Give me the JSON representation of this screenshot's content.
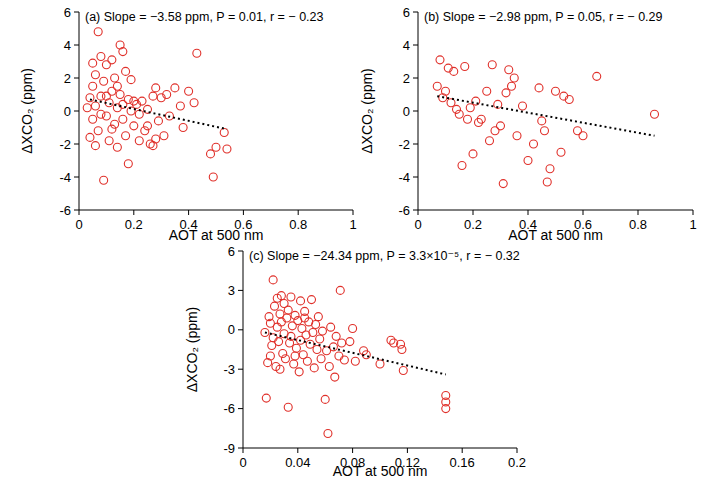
{
  "chart_data": [
    {
      "type": "scatter",
      "annotation": "(a) Slope = −3.58 ppm, P = 0.01, r = − 0.23",
      "x_label": "AOT at 500 nm",
      "y_label": "ΔXCO₂ (ppm)",
      "xlim": [
        0,
        1
      ],
      "xticks": [
        0,
        0.2,
        0.4,
        0.6,
        0.8,
        1
      ],
      "ylim": [
        -6,
        6
      ],
      "yticks": [
        -6,
        -4,
        -2,
        0,
        2,
        4,
        6
      ],
      "series": [
        {
          "type": "scatter",
          "marker": "open_circle",
          "color": "#e0302a",
          "x": [
            0.04,
            0.05,
            0.05,
            0.06,
            0.06,
            0.07,
            0.07,
            0.08,
            0.08,
            0.09,
            0.09,
            0.1,
            0.1,
            0.11,
            0.11,
            0.12,
            0.12,
            0.13,
            0.13,
            0.14,
            0.14,
            0.15,
            0.15,
            0.16,
            0.16,
            0.17,
            0.17,
            0.18,
            0.18,
            0.19,
            0.19,
            0.2,
            0.21,
            0.22,
            0.23,
            0.24,
            0.25,
            0.26,
            0.27,
            0.27,
            0.28,
            0.29,
            0.3,
            0.31,
            0.32,
            0.33,
            0.35,
            0.37,
            0.38,
            0.4,
            0.42,
            0.43,
            0.48,
            0.49,
            0.5,
            0.53,
            0.54,
            0.03,
            0.04,
            0.06,
            0.08,
            0.1,
            0.12,
            0.14,
            0.16,
            0.2,
            0.22,
            0.25,
            0.28,
            0.05
          ],
          "values": [
            0.8,
            1.5,
            -0.5,
            2.2,
            0.3,
            4.8,
            -1.2,
            3.3,
            0.9,
            -4.2,
            1.8,
            2.8,
            -0.3,
            0.5,
            -1.8,
            3.1,
            1.2,
            -0.8,
            2.0,
            0.2,
            -2.2,
            4.0,
            1.0,
            3.6,
            -0.5,
            2.4,
            -1.5,
            0.7,
            -3.2,
            1.9,
            0.0,
            -0.9,
            0.4,
            -1.8,
            0.6,
            -1.2,
            0.1,
            -2.0,
            -2.1,
            0.9,
            -1.7,
            -0.6,
            0.8,
            -1.5,
            1.0,
            -0.3,
            1.4,
            0.3,
            -1.0,
            1.2,
            0.5,
            3.5,
            -2.6,
            -4.0,
            -2.2,
            -1.3,
            -2.3,
            0.2,
            -1.6,
            -2.1,
            -0.2,
            0.9,
            -1.1,
            1.5,
            0.4,
            0.6,
            -0.2,
            -0.9,
            1.4,
            2.9
          ]
        },
        {
          "type": "line",
          "line_style": "dotted",
          "color": "#000000",
          "x": [
            0.04,
            0.54
          ],
          "values": [
            0.7,
            -1.1
          ]
        }
      ]
    },
    {
      "type": "scatter",
      "annotation": "(b) Slope = −2.98 ppm, P = 0.05, r = − 0.29",
      "x_label": "AOT at 500 nm",
      "y_label": "ΔXCO₂ (ppm)",
      "xlim": [
        0,
        1
      ],
      "xticks": [
        0,
        0.2,
        0.4,
        0.6,
        0.8,
        1
      ],
      "ylim": [
        -6,
        6
      ],
      "yticks": [
        -6,
        -4,
        -2,
        0,
        2,
        4,
        6
      ],
      "series": [
        {
          "type": "scatter",
          "marker": "open_circle",
          "color": "#e0302a",
          "x": [
            0.07,
            0.08,
            0.09,
            0.1,
            0.11,
            0.12,
            0.13,
            0.14,
            0.15,
            0.16,
            0.17,
            0.18,
            0.19,
            0.2,
            0.21,
            0.22,
            0.23,
            0.25,
            0.26,
            0.27,
            0.28,
            0.29,
            0.3,
            0.31,
            0.32,
            0.33,
            0.34,
            0.35,
            0.36,
            0.38,
            0.4,
            0.42,
            0.44,
            0.45,
            0.46,
            0.47,
            0.48,
            0.5,
            0.52,
            0.53,
            0.55,
            0.58,
            0.6,
            0.65,
            0.86
          ],
          "values": [
            1.5,
            3.1,
            0.8,
            1.2,
            2.6,
            0.5,
            2.4,
            0.1,
            -0.2,
            -3.3,
            2.7,
            -0.5,
            0.2,
            -2.6,
            0.6,
            -0.7,
            -0.5,
            1.2,
            -1.8,
            2.8,
            -1.2,
            0.4,
            -0.9,
            -4.4,
            1.1,
            2.5,
            1.5,
            2.0,
            -1.5,
            0.3,
            -3.0,
            -2.0,
            1.4,
            -0.6,
            -1.2,
            -4.3,
            -3.5,
            1.2,
            -2.5,
            0.9,
            0.7,
            -1.2,
            -1.5,
            2.1,
            -0.2
          ]
        },
        {
          "type": "line",
          "line_style": "dotted",
          "color": "#000000",
          "x": [
            0.07,
            0.86
          ],
          "values": [
            0.9,
            -1.5
          ]
        }
      ]
    },
    {
      "type": "scatter",
      "annotation": "(c) Slope = −24.34 ppm, P = 3.3×10⁻⁵, r = − 0.32",
      "x_label": "AOT at 500 nm",
      "y_label": "ΔXCO₂ (ppm)",
      "xlim": [
        0,
        0.2
      ],
      "xticks": [
        0,
        0.04,
        0.08,
        0.12,
        0.16,
        0.2
      ],
      "ylim": [
        -9,
        6
      ],
      "yticks": [
        -9,
        -6,
        -3,
        0,
        3,
        6
      ],
      "series": [
        {
          "type": "scatter",
          "marker": "open_circle",
          "color": "#e0302a",
          "x": [
            0.016,
            0.017,
            0.018,
            0.019,
            0.02,
            0.021,
            0.022,
            0.022,
            0.023,
            0.024,
            0.025,
            0.025,
            0.026,
            0.027,
            0.027,
            0.028,
            0.029,
            0.03,
            0.03,
            0.031,
            0.032,
            0.033,
            0.033,
            0.034,
            0.035,
            0.035,
            0.036,
            0.037,
            0.038,
            0.039,
            0.04,
            0.041,
            0.042,
            0.042,
            0.043,
            0.044,
            0.045,
            0.046,
            0.047,
            0.048,
            0.049,
            0.05,
            0.051,
            0.052,
            0.053,
            0.054,
            0.055,
            0.056,
            0.057,
            0.058,
            0.06,
            0.061,
            0.062,
            0.063,
            0.064,
            0.066,
            0.067,
            0.068,
            0.07,
            0.071,
            0.072,
            0.074,
            0.078,
            0.08,
            0.082,
            0.088,
            0.09,
            0.1,
            0.108,
            0.11,
            0.115,
            0.116,
            0.117,
            0.148,
            0.148,
            0.148,
            0.02,
            0.028,
            0.038,
            0.045
          ],
          "values": [
            -0.2,
            -5.2,
            -2.5,
            1.0,
            0.5,
            -1.2,
            3.8,
            -0.6,
            1.8,
            -2.8,
            0.2,
            2.4,
            -0.9,
            -3.0,
            1.2,
            0.6,
            -1.8,
            2.0,
            -0.3,
            -2.2,
            0.9,
            -5.9,
            1.5,
            -1.0,
            2.5,
            -0.5,
            0.3,
            -2.6,
            1.1,
            -1.4,
            0.7,
            -3.2,
            2.2,
            -0.8,
            0.1,
            -1.9,
            1.4,
            -0.4,
            -2.4,
            0.6,
            -1.1,
            2.3,
            -0.2,
            -2.9,
            0.4,
            -1.5,
            1.0,
            -0.7,
            -2.2,
            -0.1,
            -5.3,
            -1.6,
            -7.9,
            -2.8,
            0.2,
            -1.3,
            -3.6,
            -0.5,
            -2.0,
            3.0,
            -1.0,
            -2.3,
            -0.9,
            0.1,
            -2.4,
            -1.6,
            -1.9,
            -2.6,
            -0.8,
            -1.0,
            -1.1,
            -1.5,
            -3.1,
            -5.0,
            -5.5,
            -6.0,
            -2.0,
            2.6,
            -2.0,
            0.9
          ]
        },
        {
          "type": "line",
          "line_style": "dotted",
          "color": "#000000",
          "x": [
            0.016,
            0.148
          ],
          "values": [
            -0.2,
            -3.4
          ]
        }
      ]
    }
  ]
}
